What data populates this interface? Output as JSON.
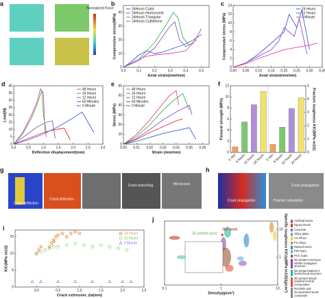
{
  "images": [
    {
      "panel": "a",
      "labels": [
        "Normalized Force"
      ]
    },
    {
      "panel": "g",
      "labels": [
        "Crack deflection",
        "Crack deflection",
        "Crack branching",
        "Microcrack"
      ]
    },
    {
      "panel": "h",
      "labels": [
        "Crack propagation",
        "Polymer adsorption",
        "Crack propagation"
      ]
    }
  ],
  "chart_data": [
    {
      "panel": "b",
      "type": "line",
      "xlabel": "Axial strain(mm/mm)",
      "ylabel": "Compressive stress(MPa)",
      "legend": "upper left",
      "xlim": [
        0,
        0.55
      ],
      "xticks": [
        {
          "value": 0,
          "label": "0.0"
        },
        0.1,
        0.2,
        0.3,
        0.4,
        0.5
      ],
      "ylim": [
        0,
        45
      ],
      "yticks": [
        0,
        10,
        20,
        30,
        40
      ],
      "series": [
        {
          "name": "24Hours Cubic",
          "color": "#3a5bd9",
          "x": [
            0,
            0.05,
            0.1,
            0.15,
            0.2,
            0.25,
            0.3,
            0.35,
            0.4,
            0.45,
            0.5
          ],
          "values": [
            0,
            4,
            9,
            12,
            10,
            11,
            13,
            15,
            17,
            20,
            24
          ]
        },
        {
          "name": "24Hours Honeycomb",
          "color": "#8a4fc7",
          "x": [
            0,
            0.1,
            0.2,
            0.25,
            0.3,
            0.33,
            0.36,
            0.4,
            0.45
          ],
          "values": [
            0,
            5,
            14,
            22,
            30,
            33,
            20,
            15,
            18
          ]
        },
        {
          "name": "24Hours Triangular",
          "color": "#3db34a",
          "x": [
            0,
            0.1,
            0.2,
            0.28,
            0.32,
            0.35,
            0.38,
            0.42,
            0.47
          ],
          "values": [
            0,
            6,
            18,
            32,
            40,
            36,
            22,
            16,
            20
          ]
        },
        {
          "name": "24Hours Cuttlebone",
          "color": "#e0409a",
          "x": [
            0,
            0.05,
            0.1,
            0.15,
            0.2,
            0.3,
            0.4,
            0.45,
            0.5
          ],
          "values": [
            0,
            3,
            6,
            8,
            9,
            10,
            12,
            18,
            28
          ]
        }
      ]
    },
    {
      "panel": "c",
      "type": "line",
      "xlabel": "Axial strain(mm/mm)",
      "ylabel": "Compressive stress (MPa)",
      "legend": "upper right",
      "xlim": [
        0,
        0.35
      ],
      "xticks": [
        {
          "value": 0,
          "label": "0.00"
        },
        0.05,
        {
          "value": 0.1,
          "label": "0.10"
        },
        0.15,
        {
          "value": 0.2,
          "label": "0.20"
        },
        0.25,
        {
          "value": 0.3,
          "label": "0.30"
        },
        0.35
      ],
      "ylim": [
        0,
        14
      ],
      "yticks": [
        0,
        2,
        4,
        6,
        8,
        10,
        12,
        14
      ],
      "series": [
        {
          "name": "24 Hours",
          "color": "#3a5bd9",
          "x": [
            0,
            0.05,
            0.1,
            0.15,
            0.2,
            0.22,
            0.25,
            0.27,
            0.3
          ],
          "values": [
            0,
            1,
            3,
            5.5,
            8,
            12,
            9,
            13,
            4
          ]
        },
        {
          "name": "12 Hours",
          "color": "#8a4fc7",
          "x": [
            0,
            0.05,
            0.1,
            0.15,
            0.18,
            0.2,
            0.24,
            0.26,
            0.29
          ],
          "values": [
            0,
            1,
            2.5,
            4,
            6,
            9,
            7,
            11,
            3
          ]
        },
        {
          "name": "0 Minute",
          "color": "#e0409a",
          "x": [
            0,
            0.05,
            0.1,
            0.15,
            0.2,
            0.25,
            0.3,
            0.33
          ],
          "values": [
            0,
            0.8,
            2,
            3,
            4,
            4.5,
            5,
            5.5
          ]
        }
      ]
    },
    {
      "panel": "d",
      "type": "line",
      "xlabel": "Deflection displacement(mm)",
      "ylabel": "Load(N)",
      "legend": "upper right",
      "xlim": [
        0,
        3
      ],
      "xticks": [
        {
          "value": 0,
          "label": "0.0"
        },
        0.5,
        {
          "value": 1,
          "label": "1.0"
        },
        1.5,
        {
          "value": 2,
          "label": "2.0"
        },
        2.5,
        {
          "value": 3,
          "label": "3.0"
        }
      ],
      "ylim": [
        0,
        40
      ],
      "yticks": [
        0,
        5,
        10,
        15,
        20,
        25,
        30,
        35,
        40
      ],
      "series": [
        {
          "name": "48 Hours",
          "color": "#e0409a",
          "x": [
            0,
            0.3,
            0.6,
            0.8,
            0.9,
            1.0,
            1.05,
            1.1
          ],
          "values": [
            0,
            8,
            20,
            30,
            38,
            35,
            10,
            5
          ]
        },
        {
          "name": "24 Hours",
          "color": "#3db34a",
          "x": [
            0,
            0.3,
            0.6,
            0.8,
            0.95,
            1.0,
            1.1
          ],
          "values": [
            0,
            7,
            18,
            28,
            37,
            20,
            8
          ]
        },
        {
          "name": "12 Hours",
          "color": "#8a4fc7",
          "x": [
            0,
            0.4,
            0.8,
            1.1,
            1.3,
            1.4
          ],
          "values": [
            0,
            6,
            12,
            15,
            16,
            4
          ]
        },
        {
          "name": "60 Minutes",
          "color": "#d9302c",
          "x": [
            0,
            0.5,
            1.0,
            1.4,
            1.7,
            1.9
          ],
          "values": [
            0,
            4,
            8,
            10,
            11,
            3
          ]
        },
        {
          "name": "0 Minute",
          "color": "#3a5bd9",
          "x": [
            0,
            0.5,
            1.0,
            1.5,
            2.0,
            2.3,
            2.5,
            2.7
          ],
          "values": [
            0,
            3,
            7,
            12,
            18,
            22,
            15,
            8
          ]
        }
      ]
    },
    {
      "panel": "e",
      "type": "line",
      "xlabel": "Strain (mm/mm)",
      "ylabel": "Stress (MPa)",
      "legend": "upper left",
      "xlim": [
        0,
        0.065
      ],
      "xticks": [
        {
          "value": 0,
          "label": "0.00"
        },
        0.01,
        0.02,
        0.03,
        0.04,
        0.05,
        0.06
      ],
      "ylim": [
        0,
        60
      ],
      "yticks": [
        0,
        10,
        20,
        30,
        40,
        50,
        60
      ],
      "series": [
        {
          "name": "48 Hours",
          "color": "#e0409a",
          "x": [
            0,
            0.01,
            0.02,
            0.03,
            0.035,
            0.04,
            0.042
          ],
          "values": [
            0,
            10,
            25,
            42,
            50,
            55,
            40
          ]
        },
        {
          "name": "24 Hours",
          "color": "#3db34a",
          "x": [
            0,
            0.01,
            0.02,
            0.03,
            0.038,
            0.045,
            0.05
          ],
          "values": [
            0,
            8,
            20,
            35,
            45,
            52,
            35
          ]
        },
        {
          "name": "12 Hours",
          "color": "#8a4fc7",
          "x": [
            0,
            0.01,
            0.02,
            0.03,
            0.04,
            0.05,
            0.052
          ],
          "values": [
            0,
            6,
            15,
            25,
            33,
            40,
            30
          ]
        },
        {
          "name": "60 Minutes",
          "color": "#d9302c",
          "x": [
            0,
            0.01,
            0.02,
            0.03,
            0.04,
            0.045
          ],
          "values": [
            0,
            5,
            12,
            18,
            24,
            26
          ]
        },
        {
          "name": "0 Minute",
          "color": "#3a5bd9",
          "x": [
            0,
            0.01,
            0.02,
            0.03,
            0.04,
            0.05,
            0.055
          ],
          "values": [
            0,
            3,
            7,
            11,
            14,
            17,
            5
          ]
        }
      ]
    },
    {
      "panel": "f",
      "type": "bar",
      "ylabel": "Flexural strength (MPa)",
      "y2label": "Fracture toughness KIC(MPa m1/2)",
      "categories": [
        "0 min",
        "3 hours",
        "12 hours",
        "24 hours",
        "0 min",
        "3 hours",
        "12 hours",
        "24 hours"
      ],
      "bar_colors": [
        "#f2a25c",
        "#7bc96f",
        "#b08fd8",
        "#f2e26b",
        "#f2a25c",
        "#7bc96f",
        "#b08fd8",
        "#f2e26b"
      ],
      "ylim": [
        0,
        12
      ],
      "yticks": [
        0,
        2,
        4,
        6,
        8,
        10,
        12
      ],
      "y2lim": [
        0,
        5
      ],
      "y2ticks": [
        0,
        1,
        2,
        3,
        4,
        5
      ],
      "series": [
        {
          "values": [
            1,
            5.5,
            8.6,
            11,
            null,
            null,
            null,
            null
          ]
        },
        {
          "values": [
            null,
            null,
            null,
            null,
            0.6,
            1.9,
            3.3,
            4.1
          ],
          "axis": "y2"
        }
      ]
    },
    {
      "panel": "i",
      "type": "scatter",
      "xlabel": "Crack extension, Δa(mm)",
      "ylabel": "KIC(MPa m1/2)",
      "legend": "upper right",
      "xlim": [
        -0.5,
        2.5
      ],
      "xticks": [
        {
          "value": 0,
          "label": "0.0"
        },
        0.5,
        {
          "value": 1,
          "label": "1.0"
        },
        1.5,
        {
          "value": 2,
          "label": "2.0"
        },
        2.5
      ],
      "ylim": [
        0,
        17
      ],
      "yticks": [
        0,
        5,
        10,
        15
      ],
      "series": [
        {
          "name": "24 Hours",
          "color": "#f08a3c",
          "marker": "star",
          "x": [
            0,
            0.05,
            0.1,
            0.3,
            0.35,
            0.4,
            0.4,
            0.45,
            0.5,
            0.6,
            0.7,
            0.8,
            0.9,
            1.0
          ],
          "values": [
            10,
            11,
            12,
            12,
            13,
            13.5,
            14,
            15,
            15.5,
            16,
            15,
            16,
            16.5,
            16
          ]
        },
        {
          "name": "12 Hours",
          "color": "#5cc95a",
          "marker": "circle",
          "x": [
            0,
            0.1,
            0.2,
            0.3,
            0.4,
            0.5,
            0.7,
            0.9,
            1.1,
            1.3,
            1.5,
            1.7,
            1.9,
            2.1
          ],
          "values": [
            10,
            10.5,
            11,
            11.5,
            12,
            12,
            12.5,
            13,
            12.5,
            12,
            12.5,
            12,
            11.5,
            11
          ]
        },
        {
          "name": "0 Minute",
          "color": "#8a6fe0",
          "marker": "triangle",
          "x": [
            -0.1,
            0.1,
            0.5,
            0.9,
            1.3,
            1.7,
            2.0,
            2.2
          ],
          "values": [
            1.6,
            1.6,
            1.6,
            1.6,
            1.6,
            1.6,
            1.6,
            1.6
          ]
        }
      ]
    },
    {
      "panel": "j",
      "type": "ashby",
      "xlabel": "Density(g/cm³)",
      "y2label": "Specific toughness KIC/ρ(MPa m1/2)/(g/cm³)",
      "xlog": true,
      "xlim": [
        0.1,
        10
      ],
      "xticks": [
        0.1,
        1,
        10
      ],
      "y2lim": [
        0.1,
        20
      ],
      "y2ticks": [
        1,
        10
      ],
      "annotations": [
        "Our work",
        "3D printed nacre"
      ],
      "items": [
        {
          "name": "Artificial Nacre",
          "color": "#d94060"
        },
        {
          "name": "Epoxy Resin",
          "color": "#a0522d"
        },
        {
          "name": "Concrete",
          "color": "#9b59b6"
        },
        {
          "name": "Silica glass",
          "color": "#5dade2"
        },
        {
          "name": "Cu Alloys",
          "color": "#f4d03f"
        },
        {
          "name": "Fe Alloys",
          "color": "#e67e22"
        },
        {
          "name": "Natural nacre",
          "color": "#2e86c1"
        },
        {
          "name": "PIR foam",
          "color": "#48c9b0"
        },
        {
          "name": "PVC foam",
          "color": "#c0392b"
        },
        {
          "name": "3D printed American lobster bouligand structure",
          "color": "#8e44ad"
        },
        {
          "name": "3D printed Baleen's hierarchical structure",
          "color": "#1abc9c"
        },
        {
          "name": "3D printed Wood-inspired Helical Composites",
          "color": "#e74c3c"
        },
        {
          "name": "Rochelle salt incorporated wood composite",
          "color": "#7f8c8d"
        }
      ]
    }
  ]
}
